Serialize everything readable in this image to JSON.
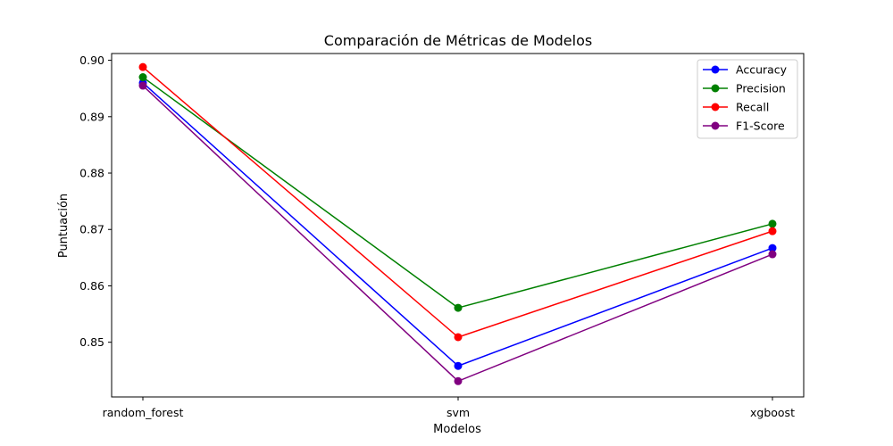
{
  "chart_data": {
    "type": "line",
    "title": "Comparación de Métricas de Modelos",
    "xlabel": "Modelos",
    "ylabel": "Puntuación",
    "categories": [
      "random_forest",
      "svm",
      "xgboost"
    ],
    "ylim": [
      0.8403,
      0.9012
    ],
    "yticks": [
      0.85,
      0.86,
      0.87,
      0.88,
      0.89,
      0.9
    ],
    "ytick_labels": [
      "0.85",
      "0.86",
      "0.87",
      "0.88",
      "0.89",
      "0.90"
    ],
    "grid": false,
    "legend_position": "top-right",
    "series": [
      {
        "name": "Accuracy",
        "color": "#0000ff",
        "values": [
          0.896,
          0.8458,
          0.8667
        ]
      },
      {
        "name": "Precision",
        "color": "#008000",
        "values": [
          0.897,
          0.8561,
          0.871
        ]
      },
      {
        "name": "Recall",
        "color": "#ff0000",
        "values": [
          0.8988,
          0.8509,
          0.8697
        ]
      },
      {
        "name": "F1-Score",
        "color": "#800080",
        "values": [
          0.8955,
          0.8431,
          0.8656
        ]
      }
    ]
  }
}
